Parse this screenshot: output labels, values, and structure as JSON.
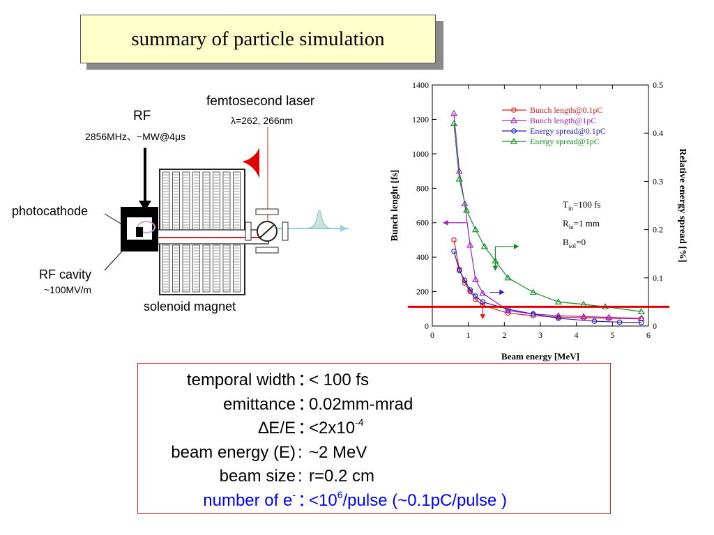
{
  "title": "summary of particle simulation",
  "diagram": {
    "rf_label": "RF",
    "rf_spec": "2856MHz、~MW@4μs",
    "laser_label": "femtosecond laser",
    "laser_wavelength": "λ=262, 266nm",
    "photocathode_label": "photocathode",
    "rf_cavity_label": "RF cavity",
    "rf_cavity_gradient": "~100MV/m",
    "solenoid_label": "solenoid magnet"
  },
  "chart_data": {
    "type": "line",
    "xlabel": "Beam energy [MeV]",
    "ylabel": "Bunch lenght [fs]",
    "y2label": "Relative energy spread [%]",
    "xlim": [
      0,
      6
    ],
    "ylim": [
      0,
      1400
    ],
    "y2lim": [
      0,
      0.5
    ],
    "xticks": [
      "0",
      "1",
      "2",
      "3",
      "4",
      "5",
      "6"
    ],
    "yticks": [
      "0",
      "200",
      "400",
      "600",
      "800",
      "1000",
      "1200",
      "1400"
    ],
    "y2ticks": [
      "0",
      "0.1",
      "0.2",
      "0.3",
      "0.4",
      "0.5"
    ],
    "legend_position": "top-right",
    "annotation_lines": [
      "T",
      "in",
      "=100 fs",
      "R",
      "in",
      "=1 mm",
      "B",
      "sol",
      "=0"
    ],
    "series": [
      {
        "name": "Bunch length@0.1pC",
        "axis": "left",
        "marker": "circle",
        "color": "#e02020",
        "x": [
          0.6,
          0.75,
          0.9,
          1.05,
          1.2,
          1.4,
          2.1,
          2.8,
          3.5,
          4.2,
          4.9,
          5.8
        ],
        "y": [
          500,
          330,
          250,
          200,
          155,
          120,
          75,
          60,
          52,
          48,
          45,
          42
        ]
      },
      {
        "name": "Bunch length@1pC",
        "axis": "left",
        "marker": "triangle",
        "color": "#a020c0",
        "x": [
          0.6,
          0.75,
          0.9,
          1.05,
          1.2,
          1.4,
          2.1,
          2.8,
          3.5,
          4.2,
          4.9,
          5.8
        ],
        "y": [
          1235,
          900,
          710,
          470,
          270,
          190,
          90,
          70,
          60,
          55,
          50,
          45
        ]
      },
      {
        "name": "Energy spread@0.1pC",
        "axis": "right",
        "marker": "circle",
        "color": "#2020c0",
        "x": [
          0.6,
          0.75,
          0.9,
          1.05,
          1.2,
          1.4,
          2.1,
          2.8,
          3.5,
          4.5,
          5.2,
          5.8
        ],
        "y": [
          0.155,
          0.115,
          0.095,
          0.075,
          0.062,
          0.05,
          0.035,
          0.025,
          0.016,
          0.01,
          0.008,
          0.007
        ]
      },
      {
        "name": "Energy spread@1pC",
        "axis": "right",
        "marker": "triangle",
        "color": "#109020",
        "x": [
          0.6,
          0.75,
          0.95,
          1.2,
          1.45,
          1.75,
          2.1,
          2.8,
          3.5,
          4.2,
          4.8,
          5.8
        ],
        "y": [
          0.42,
          0.305,
          0.24,
          0.2,
          0.165,
          0.135,
          0.1,
          0.07,
          0.05,
          0.045,
          0.04,
          0.03
        ]
      }
    ],
    "threshold_value": 0.04
  },
  "summary": {
    "rows": [
      {
        "key": "temporal width",
        "sep": "：",
        "value": "< 100 fs"
      },
      {
        "key": "emittance",
        "sep": "：",
        "value": " 0.02mm-mrad"
      },
      {
        "key": "∆E/E",
        "sep": "：",
        "value": "<2x10",
        "sup": "-4"
      },
      {
        "key": "beam energy (E)",
        "sep": ":",
        "value": " ~2 MeV"
      },
      {
        "key": "beam size",
        "sep": ":",
        "value": " r=0.2 cm"
      }
    ],
    "last_key": "number of e",
    "last_key_sup": "-",
    "last_sep": "：",
    "last_value_pre": "<10",
    "last_value_sup": "6",
    "last_value_post": "/pulse (~0.1pC/pulse )"
  }
}
